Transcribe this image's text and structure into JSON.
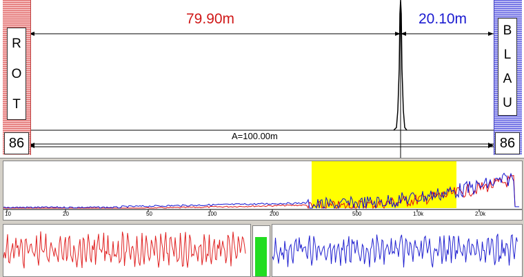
{
  "channels": {
    "left": {
      "letters": [
        "R",
        "O",
        "T"
      ],
      "count": "86",
      "distance": "79.90m",
      "color": "#d01818"
    },
    "right": {
      "letters": [
        "B",
        "L",
        "A",
        "U"
      ],
      "count": "86",
      "distance": "20.10m",
      "color": "#1a1ad0"
    }
  },
  "total_distance": "A=100.00m",
  "spectrum": {
    "freq_ticks": [
      "10",
      "20",
      "50",
      "100",
      "200",
      "500",
      "1.0k",
      "2.0k"
    ],
    "highlight_color": "#ffff00"
  },
  "level_meter": {
    "fraction": 0.78,
    "color": "#22dd22"
  }
}
